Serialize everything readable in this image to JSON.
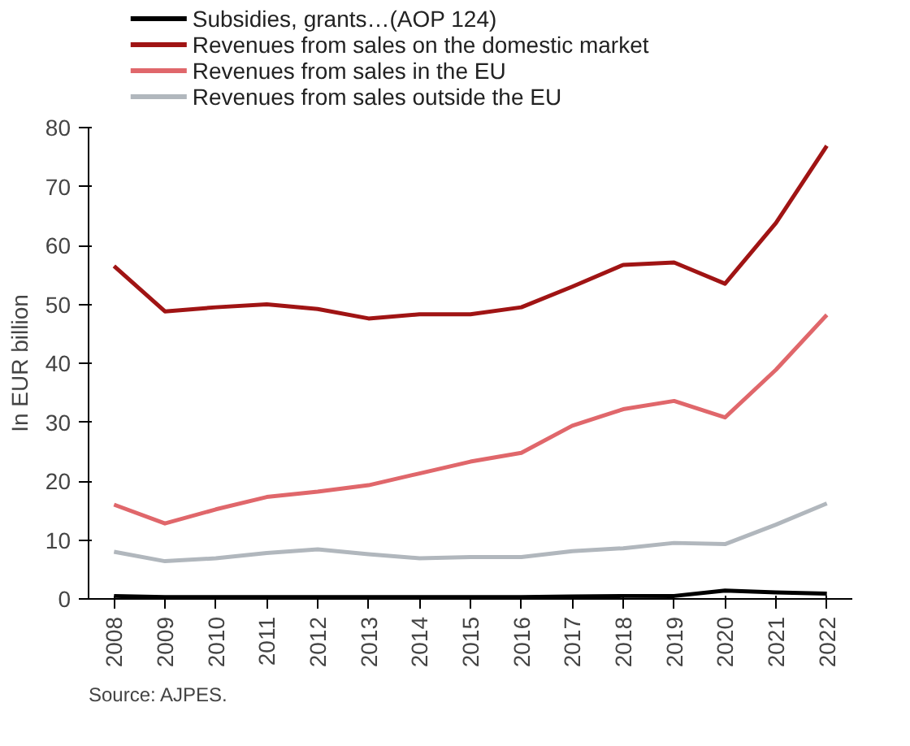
{
  "chart_data": {
    "type": "line",
    "ylabel": "In EUR billion",
    "annotations": [
      "Source: AJPES."
    ],
    "categories": [
      "2008",
      "2009",
      "2010",
      "2011",
      "2012",
      "2013",
      "2014",
      "2015",
      "2016",
      "2017",
      "2018",
      "2019",
      "2020",
      "2021",
      "2022"
    ],
    "series": [
      {
        "name": "Subsidies, grants…(AOP 124)",
        "color": "#000000",
        "values": [
          0.5,
          0.3,
          0.3,
          0.3,
          0.3,
          0.3,
          0.3,
          0.3,
          0.3,
          0.4,
          0.5,
          0.5,
          1.4,
          1.1,
          0.9
        ]
      },
      {
        "name": "Revenues from sales on the domestic market",
        "color": "#a01414",
        "values": [
          56.5,
          48.8,
          49.5,
          50,
          49.2,
          47.6,
          48.3,
          48.3,
          49.5,
          53,
          56.7,
          57.1,
          53.5,
          63.8,
          76.9
        ]
      },
      {
        "name": "Revenues from sales in the EU",
        "color": "#e0676b",
        "values": [
          16,
          12.8,
          15.2,
          17.3,
          18.2,
          19.3,
          21.3,
          23.3,
          24.8,
          29.4,
          32.2,
          33.6,
          30.8,
          38.9,
          48.2
        ]
      },
      {
        "name": "Revenues from sales outside the EU",
        "color": "#b1b7bd",
        "values": [
          8,
          6.4,
          6.9,
          7.8,
          8.4,
          7.6,
          6.9,
          7.1,
          7.1,
          8.1,
          8.6,
          9.5,
          9.3,
          12.6,
          16.2
        ]
      }
    ],
    "ylim": [
      0,
      80
    ],
    "yticks": [
      0,
      10,
      20,
      30,
      40,
      50,
      60,
      70,
      80
    ],
    "grid": false,
    "legend": "top",
    "marker": "none",
    "line_style": "solid"
  }
}
